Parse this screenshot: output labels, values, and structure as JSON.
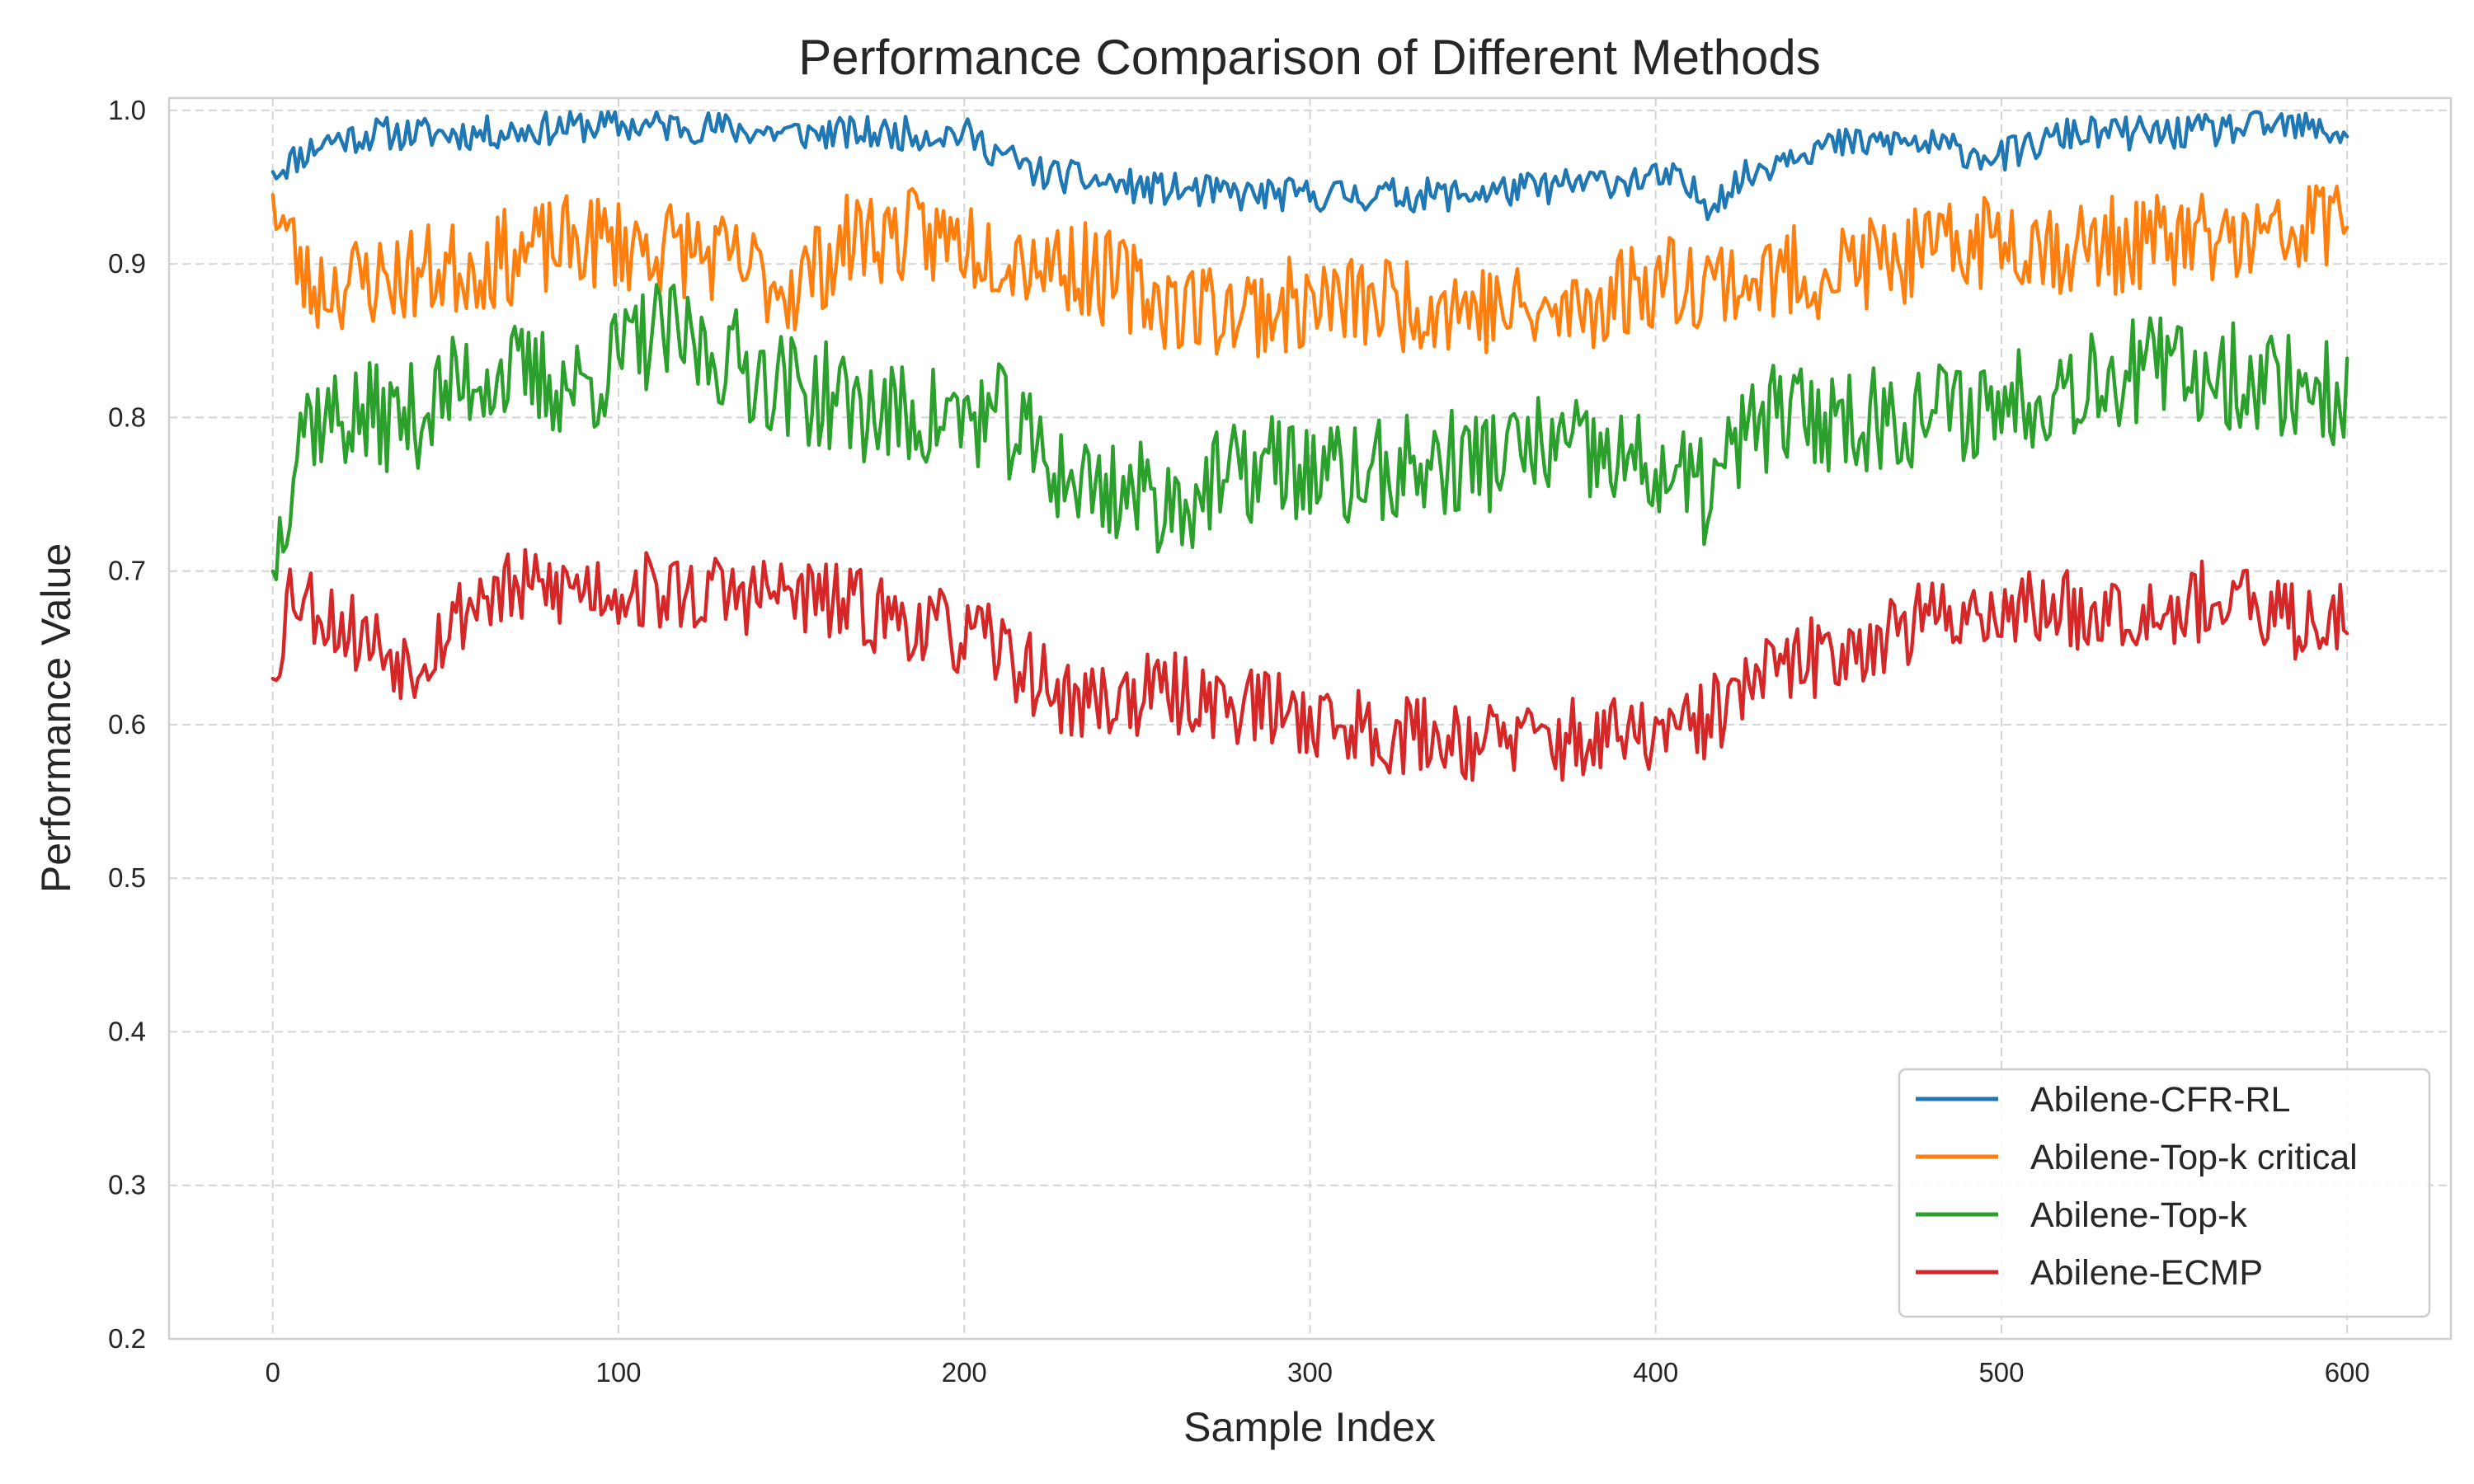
{
  "chart_data": {
    "type": "line",
    "title": "Performance Comparison of Different Methods",
    "xlabel": "Sample Index",
    "ylabel": "Performance Value",
    "xlim": [
      -30,
      630
    ],
    "ylim": [
      0.2,
      1.008
    ],
    "xticks": [
      0,
      100,
      200,
      300,
      400,
      500,
      600
    ],
    "xtick_labels": [
      "0",
      "100",
      "200",
      "300",
      "400",
      "500",
      "600"
    ],
    "yticks": [
      0.2,
      0.3,
      0.4,
      0.5,
      0.6,
      0.7,
      0.8,
      0.9,
      1.0
    ],
    "ytick_labels": [
      "0.2",
      "0.3",
      "0.4",
      "0.5",
      "0.6",
      "0.7",
      "0.8",
      "0.9",
      "1.0"
    ],
    "grid": true,
    "legend_position": "bottom-right",
    "series": [
      {
        "name": "Abilene-CFR-RL",
        "color": "#1f77b4",
        "anchors": [
          [
            0,
            0.96
          ],
          [
            15,
            0.98
          ],
          [
            30,
            0.985
          ],
          [
            60,
            0.985
          ],
          [
            90,
            0.99
          ],
          [
            120,
            0.99
          ],
          [
            150,
            0.985
          ],
          [
            180,
            0.985
          ],
          [
            200,
            0.985
          ],
          [
            220,
            0.96
          ],
          [
            250,
            0.95
          ],
          [
            280,
            0.945
          ],
          [
            310,
            0.945
          ],
          [
            340,
            0.945
          ],
          [
            370,
            0.95
          ],
          [
            390,
            0.955
          ],
          [
            405,
            0.955
          ],
          [
            415,
            0.94
          ],
          [
            425,
            0.955
          ],
          [
            440,
            0.975
          ],
          [
            470,
            0.98
          ],
          [
            500,
            0.97
          ],
          [
            520,
            0.985
          ],
          [
            550,
            0.985
          ],
          [
            580,
            0.99
          ],
          [
            600,
            0.985
          ]
        ],
        "amplitude": 0.011,
        "seed": 11
      },
      {
        "name": "Abilene-Top-k critical",
        "color": "#ff7f0e",
        "anchors": [
          [
            0,
            0.945
          ],
          [
            10,
            0.885
          ],
          [
            30,
            0.89
          ],
          [
            60,
            0.9
          ],
          [
            90,
            0.915
          ],
          [
            120,
            0.91
          ],
          [
            150,
            0.885
          ],
          [
            170,
            0.92
          ],
          [
            200,
            0.915
          ],
          [
            230,
            0.9
          ],
          [
            260,
            0.875
          ],
          [
            280,
            0.87
          ],
          [
            310,
            0.875
          ],
          [
            340,
            0.875
          ],
          [
            370,
            0.865
          ],
          [
            400,
            0.89
          ],
          [
            430,
            0.89
          ],
          [
            460,
            0.9
          ],
          [
            480,
            0.905
          ],
          [
            500,
            0.92
          ],
          [
            520,
            0.91
          ],
          [
            550,
            0.915
          ],
          [
            580,
            0.915
          ],
          [
            600,
            0.935
          ]
        ],
        "amplitude": 0.032,
        "seed": 23
      },
      {
        "name": "Abilene-Top-k",
        "color": "#2ca02c",
        "anchors": [
          [
            0,
            0.7
          ],
          [
            8,
            0.8
          ],
          [
            20,
            0.8
          ],
          [
            40,
            0.8
          ],
          [
            60,
            0.83
          ],
          [
            90,
            0.82
          ],
          [
            110,
            0.855
          ],
          [
            130,
            0.84
          ],
          [
            150,
            0.82
          ],
          [
            180,
            0.8
          ],
          [
            210,
            0.8
          ],
          [
            230,
            0.76
          ],
          [
            260,
            0.745
          ],
          [
            290,
            0.77
          ],
          [
            310,
            0.76
          ],
          [
            340,
            0.77
          ],
          [
            370,
            0.78
          ],
          [
            400,
            0.765
          ],
          [
            415,
            0.75
          ],
          [
            430,
            0.8
          ],
          [
            460,
            0.8
          ],
          [
            490,
            0.805
          ],
          [
            500,
            0.81
          ],
          [
            530,
            0.83
          ],
          [
            560,
            0.83
          ],
          [
            590,
            0.82
          ],
          [
            600,
            0.81
          ]
        ],
        "amplitude": 0.036,
        "seed": 37
      },
      {
        "name": "Abilene-ECMP",
        "color": "#d62728",
        "anchors": [
          [
            0,
            0.63
          ],
          [
            5,
            0.69
          ],
          [
            20,
            0.665
          ],
          [
            40,
            0.64
          ],
          [
            60,
            0.685
          ],
          [
            90,
            0.69
          ],
          [
            120,
            0.685
          ],
          [
            150,
            0.685
          ],
          [
            180,
            0.67
          ],
          [
            210,
            0.65
          ],
          [
            230,
            0.615
          ],
          [
            260,
            0.62
          ],
          [
            290,
            0.61
          ],
          [
            320,
            0.595
          ],
          [
            350,
            0.59
          ],
          [
            380,
            0.59
          ],
          [
            410,
            0.595
          ],
          [
            430,
            0.63
          ],
          [
            460,
            0.655
          ],
          [
            490,
            0.675
          ],
          [
            520,
            0.675
          ],
          [
            560,
            0.68
          ],
          [
            590,
            0.665
          ],
          [
            600,
            0.68
          ]
        ],
        "amplitude": 0.027,
        "seed": 53
      }
    ]
  }
}
